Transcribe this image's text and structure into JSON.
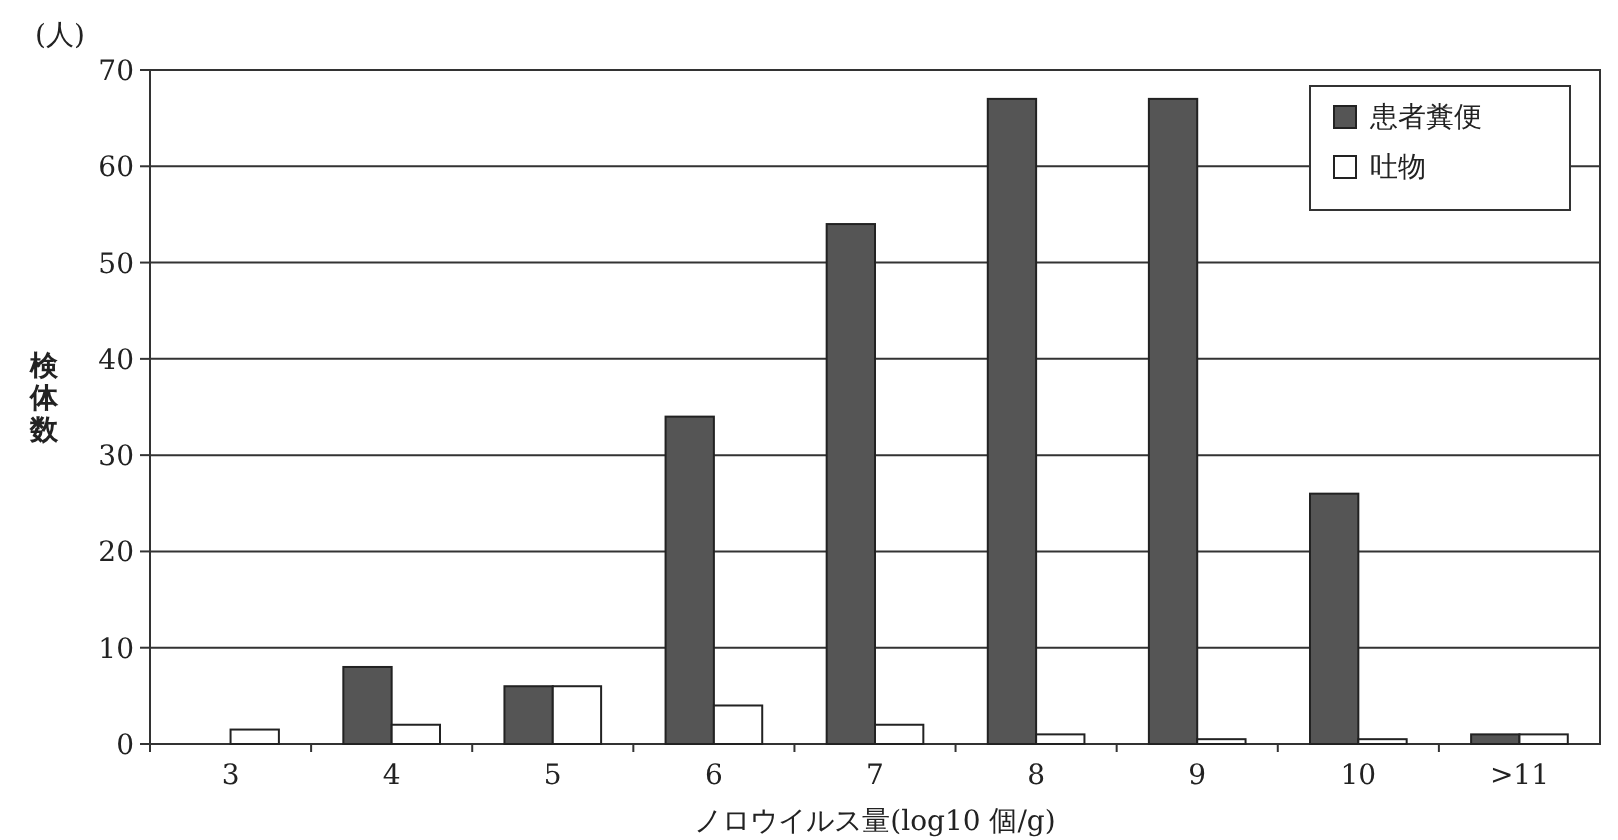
{
  "chart_data": {
    "type": "bar",
    "xlabel": "ノロウイルス量(log10 個/g)",
    "ylabel": "検体数",
    "annotations": [
      "(人)"
    ],
    "categories": [
      "3",
      "4",
      "5",
      "6",
      "7",
      "8",
      "9",
      "10",
      ">11"
    ],
    "series": [
      {
        "name": "患者糞便",
        "color": "#555555",
        "values": [
          0,
          8,
          6,
          34,
          54,
          67,
          67,
          26,
          1
        ]
      },
      {
        "name": "吐物",
        "color": "#ffffff",
        "values": [
          1.5,
          2,
          6,
          4,
          2,
          1,
          0.5,
          0.5,
          1
        ]
      }
    ],
    "ylim": [
      0,
      70
    ],
    "yticks": [
      0,
      10,
      20,
      30,
      40,
      50,
      60,
      70
    ],
    "grid": "y",
    "legend": "top right"
  }
}
